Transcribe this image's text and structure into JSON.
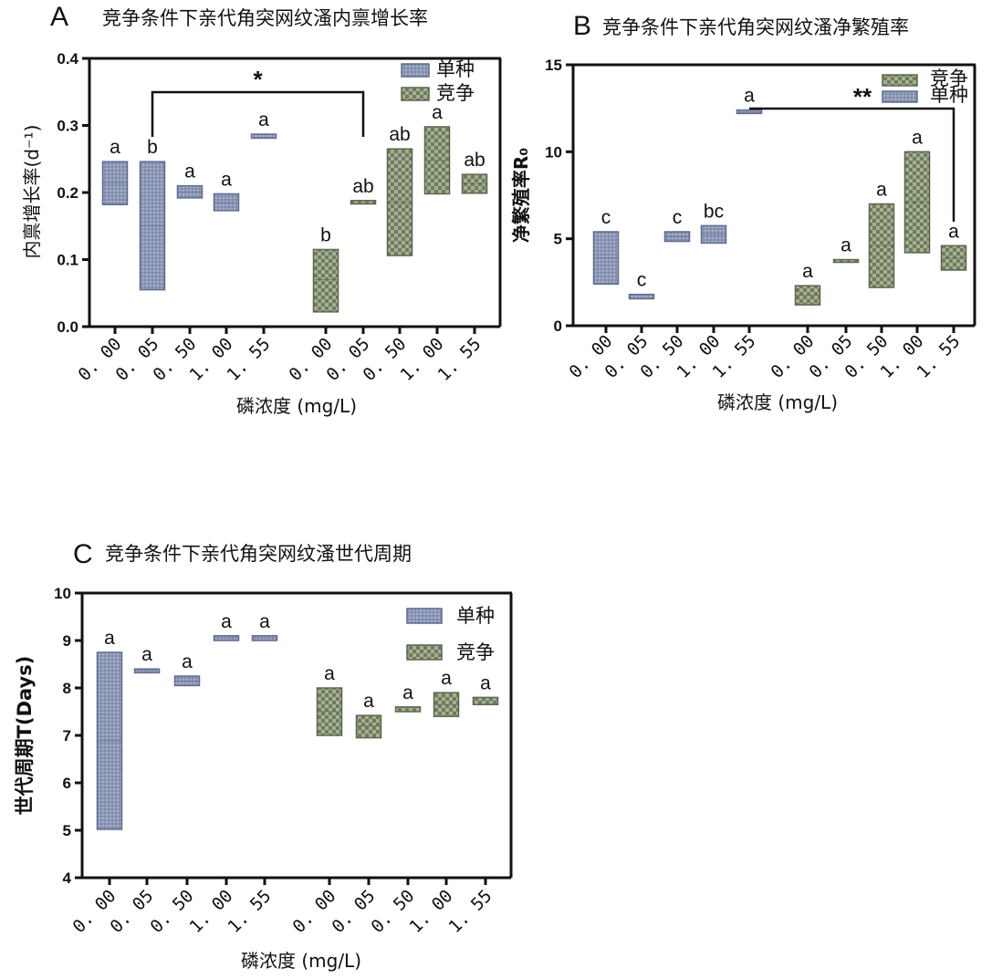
{
  "colors": {
    "mono_fill": "#8a95b3",
    "mono_stroke": "#5f6b8f",
    "comp_fill": "#7d8a6c",
    "comp_stroke": "#5a6650",
    "axis": "#111111"
  },
  "chart_data": [
    {
      "panel": "A",
      "type": "floating_bar",
      "title": "竞争条件下亲代角突网纹溞内禀增长率",
      "xlabel": "磷浓度 (mg/L)",
      "ylabel": "内禀增长率(d⁻¹)",
      "ylim": [
        0,
        0.4
      ],
      "yticks": [
        "0.0",
        "0.1",
        "0.2",
        "0.3",
        "0.4"
      ],
      "legend_position": "top-right",
      "legend": [
        "单种",
        "竞争"
      ],
      "x_tick_labels": [
        "0. 00",
        "0. 05",
        "0. 50",
        "1. 00",
        "1. 55",
        "0. 00",
        "0. 05",
        "0. 50",
        "1. 00",
        "1. 55"
      ],
      "series": [
        {
          "name": "单种",
          "low": [
            0.182,
            0.055,
            0.192,
            0.173,
            0.281
          ],
          "high": [
            0.246,
            0.246,
            0.21,
            0.198,
            0.287
          ],
          "mid": [
            0.214,
            0.15,
            0.201,
            0.185,
            0.284
          ],
          "letters": [
            "a",
            "b",
            "a",
            "a",
            "a"
          ]
        },
        {
          "name": "竞争",
          "low": [
            0.022,
            0.183,
            0.106,
            0.198,
            0.199
          ],
          "high": [
            0.115,
            0.188,
            0.265,
            0.298,
            0.227
          ],
          "mid": [
            0.07,
            0.185,
            0.185,
            0.248,
            0.213
          ],
          "letters": [
            "b",
            "ab",
            "ab",
            "a",
            "ab"
          ]
        }
      ],
      "significance": {
        "label": "*",
        "from_index": 1,
        "to_index": 6
      }
    },
    {
      "panel": "B",
      "type": "floating_bar",
      "title": "竞争条件下亲代角突网纹溞净繁殖率",
      "xlabel": "磷浓度 (mg/L)",
      "ylabel": "净繁殖率R₀",
      "ylim": [
        0,
        15
      ],
      "yticks": [
        "0",
        "5",
        "10",
        "15"
      ],
      "legend_position": "top-right",
      "legend": [
        "竞争",
        "单种"
      ],
      "x_tick_labels": [
        "0. 00",
        "0. 05",
        "0. 50",
        "1. 00",
        "1. 55",
        "0. 00",
        "0. 05",
        "0. 50",
        "1. 00",
        "1. 55"
      ],
      "series": [
        {
          "name": "单种",
          "low": [
            2.4,
            1.55,
            4.85,
            4.75,
            12.2
          ],
          "high": [
            5.4,
            1.8,
            5.4,
            5.75,
            12.4
          ],
          "mid": [
            3.9,
            1.68,
            5.12,
            5.25,
            12.3
          ],
          "letters": [
            "c",
            "c",
            "c",
            "bc",
            "a"
          ]
        },
        {
          "name": "竞争",
          "low": [
            1.2,
            3.65,
            2.2,
            4.2,
            3.2
          ],
          "high": [
            2.3,
            3.8,
            7.0,
            10.0,
            4.6
          ],
          "mid": [
            1.75,
            3.72,
            4.6,
            7.1,
            3.9
          ],
          "letters": [
            "a",
            "a",
            "a",
            "a",
            "a"
          ]
        }
      ],
      "significance": {
        "label": "**",
        "from_index": 4,
        "to_index": 9
      }
    },
    {
      "panel": "C",
      "type": "floating_bar",
      "title": "竞争条件下亲代角突网纹溞世代周期",
      "xlabel": "磷浓度 (mg/L)",
      "ylabel": "世代周期T(Days)",
      "ylim": [
        4,
        10
      ],
      "yticks": [
        "4",
        "5",
        "6",
        "7",
        "8",
        "9",
        "10"
      ],
      "legend_position": "top-right",
      "legend": [
        "单种",
        "竞争"
      ],
      "x_tick_labels": [
        "0. 00",
        "0. 05",
        "0. 50",
        "1. 00",
        "1. 55",
        "0. 00",
        "0. 05",
        "0. 50",
        "1. 00",
        "1. 55"
      ],
      "series": [
        {
          "name": "单种",
          "low": [
            5.02,
            8.32,
            8.05,
            9.0,
            9.0
          ],
          "high": [
            8.75,
            8.4,
            8.25,
            9.1,
            9.1
          ],
          "mid": [
            6.88,
            8.36,
            8.15,
            9.05,
            9.05
          ],
          "letters": [
            "a",
            "a",
            "a",
            "a",
            "a"
          ]
        },
        {
          "name": "竞争",
          "low": [
            7.0,
            6.95,
            7.5,
            7.4,
            7.65
          ],
          "high": [
            8.0,
            7.42,
            7.6,
            7.9,
            7.8
          ],
          "mid": [
            7.5,
            7.2,
            7.55,
            7.65,
            7.72
          ],
          "letters": [
            "a",
            "a",
            "a",
            "a",
            "a"
          ]
        }
      ]
    }
  ]
}
